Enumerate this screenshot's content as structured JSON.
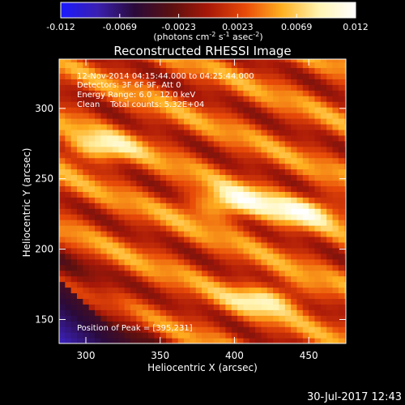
{
  "colors": {
    "background": "#000000",
    "axis": "#ffffff",
    "text": "#ffffff",
    "colormap": [
      "#1a1aff",
      "#3a1fb0",
      "#2a0a3a",
      "#5a1010",
      "#a81808",
      "#e84a08",
      "#ffb020",
      "#fff4b0",
      "#ffffff"
    ]
  },
  "colorbar": {
    "ticks": [
      "-0.012",
      "-0.0069",
      "-0.0023",
      "0.0023",
      "0.0069",
      "0.012"
    ],
    "range": [
      -0.012,
      0.012
    ],
    "unit_label_base": "(photons cm",
    "unit_sup1": "-2",
    "unit_mid": " s",
    "unit_sup2": "-1",
    "unit_tail": " asec",
    "unit_sup3": "-2",
    "unit_close": ")"
  },
  "chart_data": {
    "type": "heatmap",
    "title": "Reconstructed RHESSI Image",
    "xlabel": "Heliocentric X (arcsec)",
    "ylabel": "Heliocentric Y (arcsec)",
    "xlim": [
      282,
      475
    ],
    "ylim": [
      133,
      335
    ],
    "x_ticks": [
      300,
      350,
      400,
      450
    ],
    "y_ticks": [
      150,
      200,
      250,
      300
    ],
    "annotations": [
      "12-Nov-2014 04:15:44.000 to 04:25:44.000",
      "Detectors: 3F 6F 9F, Att 0",
      "Energy Range: 6.0 - 12.0 keV",
      "Clean    Total counts: 5.32E+04"
    ],
    "peak_label": "Position of Peak = [395,231]",
    "peak_position": [
      395,
      231
    ],
    "bright_regions": [
      {
        "x": 395,
        "y": 231,
        "level": 1.0
      },
      {
        "x": 442,
        "y": 225,
        "level": 0.82
      },
      {
        "x": 305,
        "y": 270,
        "level": 0.8
      },
      {
        "x": 420,
        "y": 163,
        "level": 0.75
      }
    ]
  },
  "footer": {
    "timestamp": "30-Jul-2017 12:43"
  }
}
